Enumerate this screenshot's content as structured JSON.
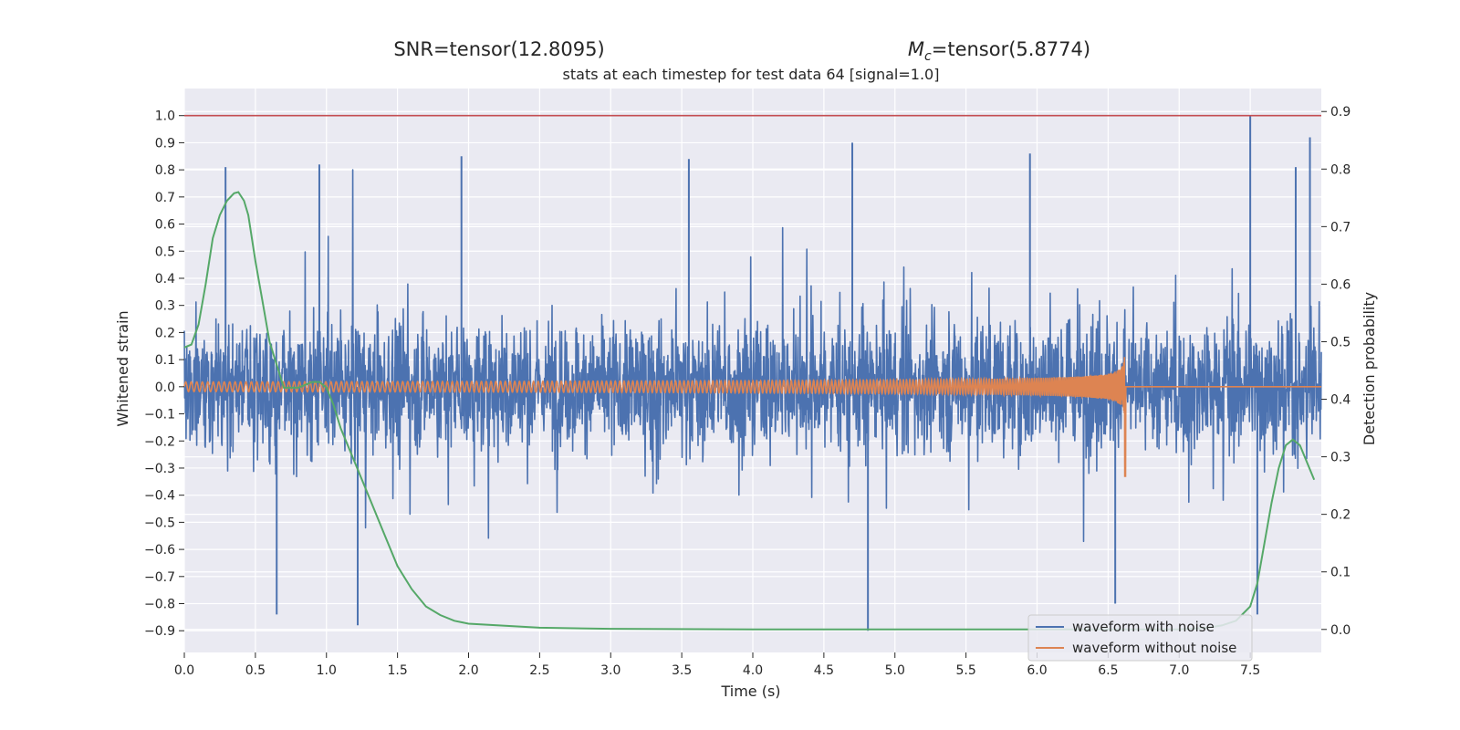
{
  "chart_data": {
    "type": "line",
    "suptitle_left": "SNR=tensor(12.8095)",
    "suptitle_right_symbol": "M",
    "suptitle_right_sub": "c",
    "suptitle_right_value": "=tensor(5.8774)",
    "title": "stats at each timestep for test data 64 [signal=1.0]",
    "xlabel": "Time (s)",
    "ylabel": "Whitened strain",
    "y2label": "Detection probability",
    "xlim": [
      0.0,
      8.0
    ],
    "ylim": [
      -0.98,
      1.1
    ],
    "y2lim": [
      -0.04,
      0.94
    ],
    "xticks": [
      "0.0",
      "0.5",
      "1.0",
      "1.5",
      "2.0",
      "2.5",
      "3.0",
      "3.5",
      "4.0",
      "4.5",
      "5.0",
      "5.5",
      "6.0",
      "6.5",
      "7.0",
      "7.5"
    ],
    "yticks": [
      "1.0",
      "0.9",
      "0.8",
      "0.7",
      "0.6",
      "0.5",
      "0.4",
      "0.3",
      "0.2",
      "0.1",
      "0.0",
      "−0.1",
      "−0.2",
      "−0.3",
      "−0.4",
      "−0.5",
      "−0.6",
      "−0.7",
      "−0.8",
      "−0.9"
    ],
    "y2ticks": [
      "0.9",
      "0.8",
      "0.7",
      "0.6",
      "0.5",
      "0.4",
      "0.3",
      "0.2",
      "0.1",
      "0.0"
    ],
    "grid": true,
    "legend_placement": "lower-right",
    "threshold": 1.0,
    "merger_time": 6.62,
    "series": [
      {
        "name": "waveform with noise",
        "color": "#4c72b0",
        "kind": "noisy strain, spikes up to about 1.0 and down to about -0.9"
      },
      {
        "name": "waveform without noise",
        "color": "#dd8452",
        "kind": "chirp, amplitude rising to about 0.36 at merger"
      }
    ],
    "probability_color": "#55a868",
    "threshold_color": "#c44e52",
    "probability": {
      "x": [
        0.0,
        0.05,
        0.1,
        0.15,
        0.2,
        0.25,
        0.3,
        0.35,
        0.38,
        0.42,
        0.45,
        0.5,
        0.55,
        0.6,
        0.65,
        0.7,
        0.75,
        0.8,
        0.85,
        0.9,
        0.95,
        1.0,
        1.05,
        1.1,
        1.2,
        1.3,
        1.4,
        1.5,
        1.6,
        1.7,
        1.8,
        1.9,
        2.0,
        2.5,
        3.0,
        4.0,
        5.0,
        6.0,
        6.5,
        7.0,
        7.2,
        7.3,
        7.4,
        7.5,
        7.55,
        7.6,
        7.65,
        7.7,
        7.75,
        7.8,
        7.85,
        7.9,
        7.95
      ],
      "y": [
        0.49,
        0.495,
        0.53,
        0.6,
        0.68,
        0.72,
        0.745,
        0.758,
        0.76,
        0.745,
        0.72,
        0.64,
        0.57,
        0.5,
        0.46,
        0.42,
        0.42,
        0.42,
        0.425,
        0.43,
        0.43,
        0.42,
        0.39,
        0.35,
        0.29,
        0.23,
        0.17,
        0.11,
        0.07,
        0.04,
        0.025,
        0.015,
        0.01,
        0.003,
        0.001,
        0.0,
        0.0,
        0.0,
        0.0,
        0.0,
        0.003,
        0.007,
        0.015,
        0.04,
        0.08,
        0.15,
        0.22,
        0.28,
        0.32,
        0.33,
        0.32,
        0.29,
        0.26
      ]
    }
  }
}
